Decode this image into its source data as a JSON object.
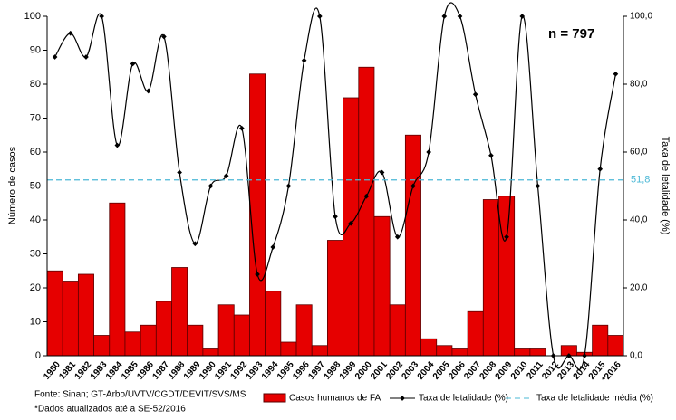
{
  "chart_data": {
    "type": "bar",
    "annotation": "n = 797",
    "y_label": "Número de casos",
    "y2_label": "Taxa de letalidade (%)",
    "categories": [
      "1980",
      "1981",
      "1982",
      "1983",
      "1984",
      "1985",
      "1986",
      "1987",
      "1988",
      "1989",
      "1990",
      "1991",
      "1992",
      "1993",
      "1994",
      "1995",
      "1996",
      "1997",
      "1998",
      "1999",
      "2000",
      "2001",
      "2002",
      "2003",
      "2004",
      "2005",
      "2006",
      "2007",
      "2008",
      "2009",
      "2010",
      "2011",
      "2012",
      "2013",
      "2014",
      "2015",
      "*2016"
    ],
    "series": [
      {
        "name": "Casos humanos de FA",
        "type": "bar",
        "color": "#e60000",
        "values": [
          25,
          22,
          24,
          6,
          45,
          7,
          9,
          16,
          26,
          9,
          2,
          15,
          12,
          83,
          19,
          4,
          15,
          3,
          34,
          76,
          85,
          41,
          15,
          65,
          5,
          3,
          2,
          13,
          46,
          47,
          2,
          2,
          0,
          3,
          1,
          9,
          6
        ]
      },
      {
        "name": "Taxa de letalidade (%)",
        "type": "line",
        "axis": "y2",
        "color": "#000000",
        "values": [
          88,
          95,
          88,
          100,
          62,
          86,
          78,
          94,
          54,
          33,
          50,
          53,
          67,
          24,
          32,
          50,
          87,
          100,
          41,
          39,
          47,
          54,
          35,
          50,
          60,
          100,
          100,
          77,
          59,
          35,
          100,
          50,
          0,
          0,
          0,
          55,
          83
        ]
      }
    ],
    "mean_line": {
      "name": "Taxa de letalidade média (%)",
      "color": "#4bb8d6",
      "axis": "y2",
      "value": 51.8,
      "value_label": "51,8"
    },
    "ylim": [
      0,
      100
    ],
    "yticks": [
      0,
      10,
      20,
      30,
      40,
      50,
      60,
      70,
      80,
      90,
      100
    ],
    "y2lim": [
      0,
      100
    ],
    "y2ticks": [
      {
        "value": 0,
        "label": "0,0"
      },
      {
        "value": 20,
        "label": "20,0"
      },
      {
        "value": 40,
        "label": "40,0"
      },
      {
        "value": 60,
        "label": "60,0"
      },
      {
        "value": 80,
        "label": "80,0"
      },
      {
        "value": 100,
        "label": "100,0"
      }
    ],
    "notes": [
      "Fonte: Sinan; GT-Arbo/UVTV/CGDT/DEVIT/SVS/MS",
      "*Dados atualizados até a SE-52/2016"
    ]
  }
}
